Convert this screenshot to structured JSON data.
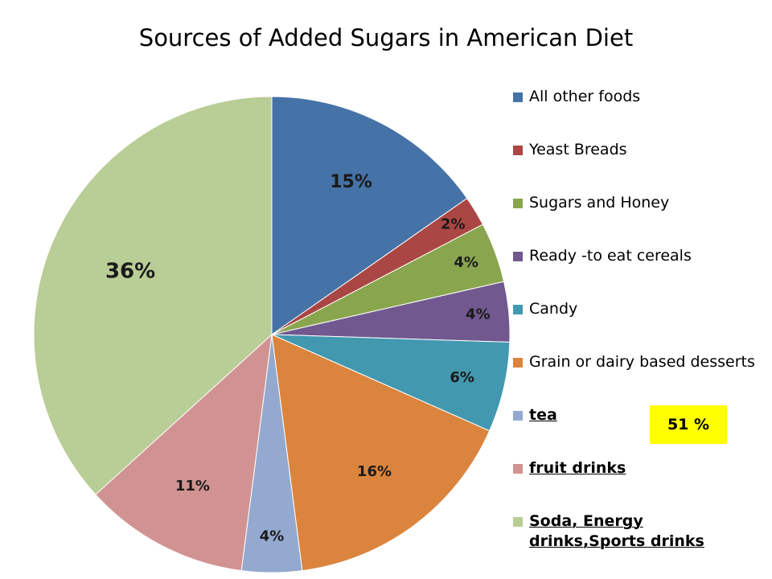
{
  "chart_data": {
    "type": "pie",
    "title": "Sources of Added Sugars in American Diet",
    "slices": [
      {
        "name": "All other foods",
        "value": 15,
        "label": "15%",
        "color": "#4572A7"
      },
      {
        "name": "Yeast Breads",
        "value": 2,
        "label": "2%",
        "color": "#AA4643"
      },
      {
        "name": "Sugars and Honey",
        "value": 4,
        "label": "4%",
        "color": "#89A54E"
      },
      {
        "name": "Ready -to eat cereals",
        "value": 4,
        "label": "4%",
        "color": "#71588F"
      },
      {
        "name": "Candy",
        "value": 6,
        "label": "6%",
        "color": "#4198AF"
      },
      {
        "name": "Grain or dairy based desserts",
        "value": 16,
        "label": "16%",
        "color": "#DB843D"
      },
      {
        "name": "tea",
        "value": 4,
        "label": "4%",
        "color": "#93A9CF"
      },
      {
        "name": "fruit drinks",
        "value": 11,
        "label": "11%",
        "color": "#D19392"
      },
      {
        "name": "Soda, Energy drinks,Sports drinks",
        "value": 36,
        "label": "36%",
        "color": "#B9CD96"
      }
    ],
    "legend_position": "right",
    "legend_bold_entries": [
      "tea",
      "fruit drinks",
      "Soda, Energy drinks,Sports drinks"
    ],
    "annotation": {
      "text": "51 %",
      "background": "#FFFF00"
    }
  }
}
